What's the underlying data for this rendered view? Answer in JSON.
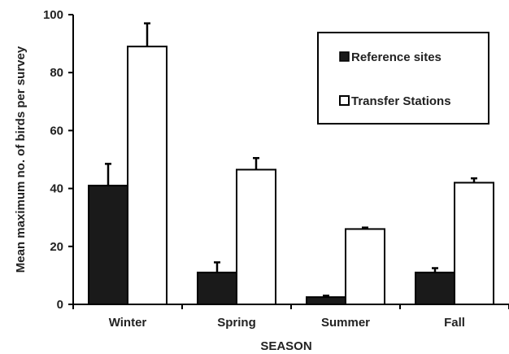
{
  "chart_data": {
    "type": "bar",
    "xlabel": "SEASON",
    "ylabel": "Mean maximum no. of birds per survey",
    "categories": [
      "Winter",
      "Spring",
      "Summer",
      "Fall"
    ],
    "ylim": [
      0,
      100
    ],
    "yticks": [
      0,
      20,
      40,
      60,
      80,
      100
    ],
    "legend_position": "top-right",
    "error_bars": "upper",
    "series": [
      {
        "name": "Reference sites",
        "fill": "#1a1a1a",
        "values": [
          41,
          11,
          2.5,
          11
        ],
        "errors": [
          7.5,
          3.5,
          0.5,
          1.5
        ]
      },
      {
        "name": "Transfer Stations",
        "fill": "#ffffff",
        "values": [
          89,
          46.5,
          26,
          42
        ],
        "errors": [
          8,
          4,
          0.5,
          1.5
        ]
      }
    ]
  }
}
